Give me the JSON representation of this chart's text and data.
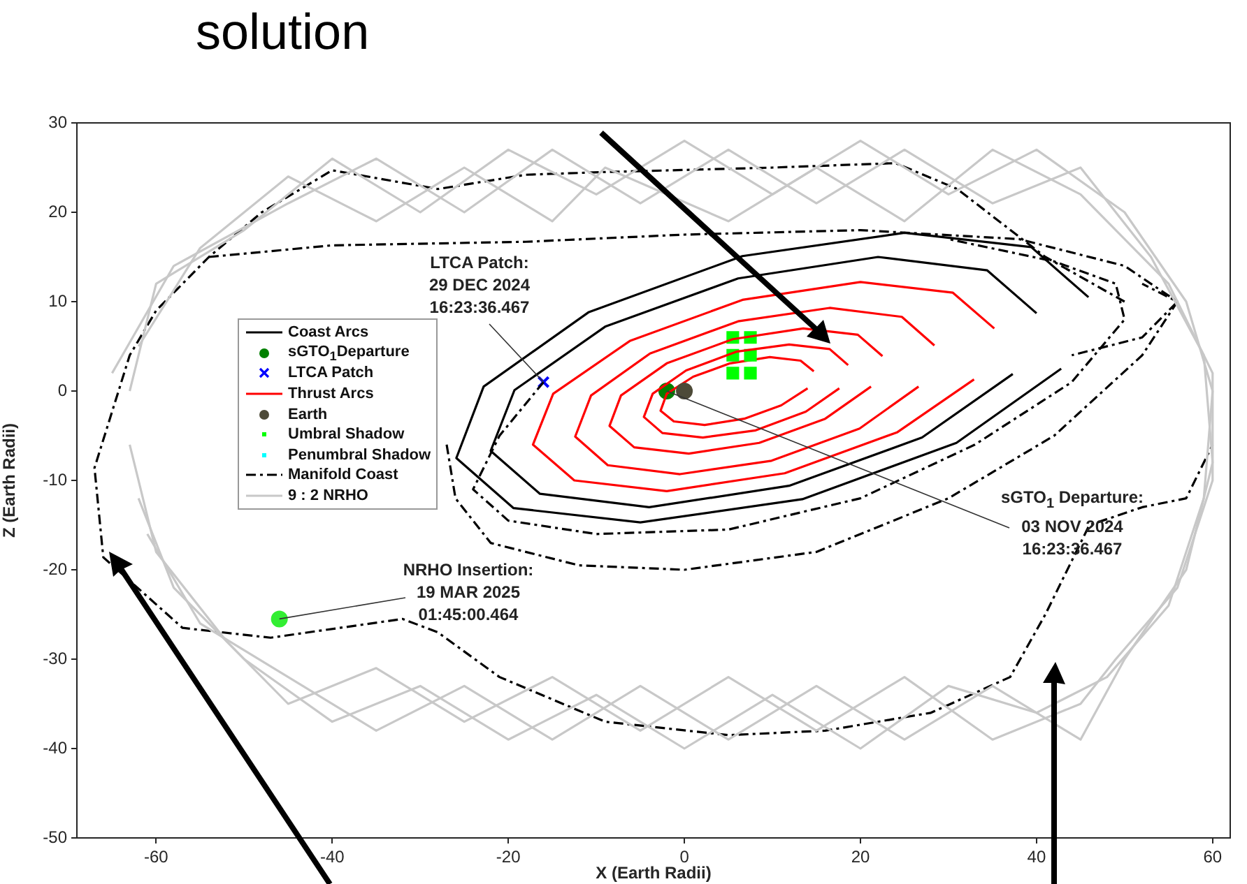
{
  "chart_data": {
    "type": "line",
    "xlabel": "X (Earth Radii)",
    "ylabel": "Z (Earth Radii)",
    "xlim": [
      -69,
      62
    ],
    "ylim": [
      -50,
      30
    ],
    "xticks": [
      -60,
      -40,
      -20,
      0,
      20,
      40,
      60
    ],
    "yticks": [
      -50,
      -40,
      -30,
      -20,
      -10,
      0,
      10,
      20,
      30
    ],
    "legend": "left",
    "annotations": [
      {
        "text": "LTCA Patch:\n29 DEC 2024\n16:23:36.467",
        "x": -16,
        "y": 1
      },
      {
        "text": "sGTO$_{1}$ Departure:\n03 NOV 2024\n16:23:36.467",
        "x": -2,
        "y": 0
      },
      {
        "text": "NRHO Insertion:\n19 MAR 2025\n01:45:00.464",
        "x": -46,
        "y": -25.5
      },
      "solution"
    ],
    "series": [
      {
        "name": "Coast Arcs",
        "color": "#000000",
        "line_style": "solid",
        "x": [
          40.0,
          34.4,
          22.0,
          6.1,
          -9.0,
          -19.3,
          -22.0,
          -16.4,
          -4.0,
          11.9,
          27.0,
          37.3
        ],
        "values": [
          8.7,
          13.5,
          15.0,
          12.6,
          7.2,
          0.1,
          -6.7,
          -11.5,
          -13.0,
          -10.6,
          -5.2,
          1.9
        ]
      },
      {
        "name": "sGTO$_{1}$Departure",
        "type": "scatter",
        "color": "#008000",
        "marker": "circle",
        "x": [
          -2
        ],
        "values": [
          0
        ]
      },
      {
        "name": "LTCA Patch",
        "type": "scatter",
        "color": "#0000ff",
        "marker": "cross",
        "x": [
          -16
        ],
        "values": [
          1
        ]
      },
      {
        "name": "Thrust Arcs",
        "color": "#ff0000",
        "line_style": "solid",
        "x": [
          14.7,
          13.2,
          9.7,
          5.2,
          1.0,
          -2.0,
          -2.7,
          -1.2,
          2.3,
          6.8,
          11.0,
          14.0
        ],
        "values": [
          2.2,
          3.4,
          3.8,
          3.1,
          1.6,
          -0.3,
          -2.2,
          -3.4,
          -3.8,
          -3.1,
          -1.6,
          0.3
        ]
      },
      {
        "name": "Earth",
        "type": "scatter",
        "color": "#4d4a38",
        "marker": "circle",
        "x": [
          0
        ],
        "values": [
          0
        ]
      },
      {
        "name": "Umbral Shadow",
        "type": "scatter",
        "color": "#00ff00",
        "marker": "square",
        "x": [
          5.5,
          5.5,
          5.5,
          7.5,
          7.5,
          7.5
        ],
        "values": [
          2,
          4,
          6,
          2,
          4,
          6
        ]
      },
      {
        "name": "Penumbral Shadow",
        "type": "scatter",
        "color": "#00ffff",
        "marker": "square"
      },
      {
        "name": "Manifold Coast",
        "color": "#000000",
        "line_style": "dashed",
        "x": [
          50,
          41,
          31,
          24,
          10,
          -9,
          -18,
          -28,
          -40,
          -48,
          -54,
          -60,
          -63,
          -67,
          -66,
          -57,
          -47,
          -32,
          -28,
          -21,
          -9,
          5,
          16,
          28,
          37,
          41,
          46,
          52,
          57,
          60
        ],
        "values": [
          10,
          15,
          22.6,
          25.5,
          25,
          24.5,
          24.2,
          22.6,
          24.7,
          20,
          15,
          9,
          4,
          -8.6,
          -18.6,
          -26.5,
          -27.6,
          -25.5,
          -27,
          -32,
          -37,
          -38.5,
          -38,
          -36,
          -32,
          -25,
          -15,
          -13,
          -12,
          -6
        ]
      },
      {
        "name": "9 : 2 NRHO",
        "color": "#c8c8c8",
        "line_style": "solid",
        "x": [
          -63,
          -60,
          -50,
          -40,
          -30,
          -20,
          -10,
          0,
          10,
          20,
          30,
          40,
          50,
          57,
          60,
          59,
          55,
          48,
          40,
          30,
          20,
          10,
          0,
          -10,
          -20,
          -30,
          -40,
          -50,
          -58,
          -62
        ],
        "values": [
          0,
          12,
          18,
          26,
          20,
          27,
          22,
          28,
          22,
          28,
          22,
          27,
          20,
          10,
          0,
          -12,
          -24,
          -32,
          -36,
          -33,
          -40,
          -34,
          -40,
          -34,
          -39,
          -33,
          -37,
          -30,
          -22,
          -12
        ]
      },
      {
        "color": "#000000",
        "line_style": "solid",
        "x": [
          45.9,
          39.4,
          25.0,
          6.6,
          -10.9,
          -22.8,
          -25.9,
          -19.4,
          -5.0,
          13.4,
          30.9,
          42.8
        ],
        "values": [
          10.5,
          16.1,
          17.7,
          15.1,
          8.8,
          0.5,
          -7.5,
          -13.1,
          -14.7,
          -12.1,
          -5.8,
          2.5
        ]
      },
      {
        "color": "#ff0000",
        "line_style": "solid",
        "x": [
          18.6,
          16.5,
          11.9,
          5.9,
          0.2,
          -3.6,
          -4.6,
          -2.5,
          2.1,
          8.1,
          13.8,
          17.6
        ],
        "values": [
          2.9,
          4.7,
          5.2,
          4.4,
          2.3,
          -0.3,
          -2.9,
          -4.7,
          -5.2,
          -4.4,
          -2.3,
          0.3
        ]
      },
      {
        "color": "#ff0000",
        "line_style": "solid",
        "x": [
          22.5,
          19.7,
          13.5,
          5.5,
          -2.0,
          -7.2,
          -8.5,
          -5.7,
          0.5,
          8.5,
          16.0,
          21.2
        ],
        "values": [
          3.9,
          6.3,
          7.0,
          5.8,
          3.1,
          -0.5,
          -3.9,
          -6.3,
          -7.0,
          -5.8,
          -3.1,
          0.5
        ]
      },
      {
        "color": "#ff0000",
        "line_style": "solid",
        "x": [
          28.4,
          24.7,
          16.5,
          6.1,
          -3.9,
          -10.6,
          -12.4,
          -8.7,
          -0.5,
          9.9,
          19.9,
          26.6
        ],
        "values": [
          5.1,
          8.3,
          9.3,
          7.8,
          4.2,
          -0.5,
          -5.1,
          -8.3,
          -9.3,
          -7.8,
          -4.2,
          0.5
        ]
      },
      {
        "color": "#ff0000",
        "line_style": "solid",
        "x": [
          35.2,
          30.5,
          20.0,
          6.6,
          -6.2,
          -14.9,
          -17.2,
          -12.5,
          -2.0,
          11.4,
          24.2,
          32.9
        ],
        "values": [
          7.0,
          11.0,
          12.2,
          10.2,
          5.6,
          -0.3,
          -6.0,
          -10.0,
          -11.2,
          -9.2,
          -4.6,
          1.3
        ]
      },
      {
        "color": "#000000",
        "line_style": "dashed",
        "x": [
          -54,
          -40,
          -18,
          0,
          20,
          38,
          50,
          56,
          52,
          44
        ],
        "values": [
          15,
          16.3,
          16.7,
          17.5,
          18,
          17,
          14,
          10,
          6,
          4
        ]
      },
      {
        "color": "#000000",
        "line_style": "dashed",
        "x": [
          -16,
          -21,
          -24,
          -20,
          -10,
          5,
          20,
          33,
          44,
          50,
          49,
          42,
          30
        ],
        "values": [
          1,
          -5,
          -11,
          -14.5,
          -16,
          -15.5,
          -12,
          -6,
          1,
          8,
          12,
          14.5,
          17
        ]
      },
      {
        "color": "#000000",
        "line_style": "dashed",
        "x": [
          -27,
          -26,
          -22,
          -12,
          0,
          15,
          30,
          42,
          52,
          56,
          52
        ],
        "values": [
          -6,
          -12,
          -17,
          -19.5,
          -20,
          -18,
          -12,
          -5,
          4,
          10,
          12
        ]
      },
      {
        "color": "#c8c8c8",
        "line_style": "solid",
        "x": [
          -65,
          -58,
          -45,
          -35,
          -25,
          -15,
          -5,
          5,
          15,
          25,
          35,
          45,
          53,
          59,
          60,
          57,
          50,
          45,
          35,
          25,
          15,
          5,
          -5,
          -15,
          -25,
          -35,
          -45,
          -55,
          -61
        ],
        "values": [
          2,
          14,
          21,
          26,
          20,
          27,
          21,
          27,
          21,
          27,
          21,
          25,
          15,
          4,
          -8,
          -20,
          -30,
          -39,
          -33,
          -39,
          -33,
          -39,
          -33,
          -39,
          -33,
          -38,
          -32,
          -26,
          -16
        ]
      },
      {
        "color": "#c8c8c8",
        "line_style": "solid",
        "x": [
          -62,
          -55,
          -45,
          -35,
          -25,
          -15,
          -9,
          5,
          15,
          25,
          35,
          45,
          55,
          60,
          60,
          56,
          49,
          45,
          35,
          25,
          15,
          5,
          -5,
          -15,
          -25,
          -35,
          -45,
          -52,
          -60,
          -63
        ],
        "values": [
          5,
          16,
          24,
          19,
          25,
          19,
          25,
          19,
          25,
          19,
          27,
          22,
          12,
          2,
          -10,
          -22,
          -30,
          -35,
          -39,
          -32,
          -38,
          -32,
          -38,
          -32,
          -37,
          -31,
          -35,
          -28,
          -18,
          -6
        ]
      },
      {
        "type": "scatter",
        "color": "#33ee33",
        "marker": "circle",
        "x": [
          -46
        ],
        "values": [
          -25.5
        ]
      }
    ]
  }
}
